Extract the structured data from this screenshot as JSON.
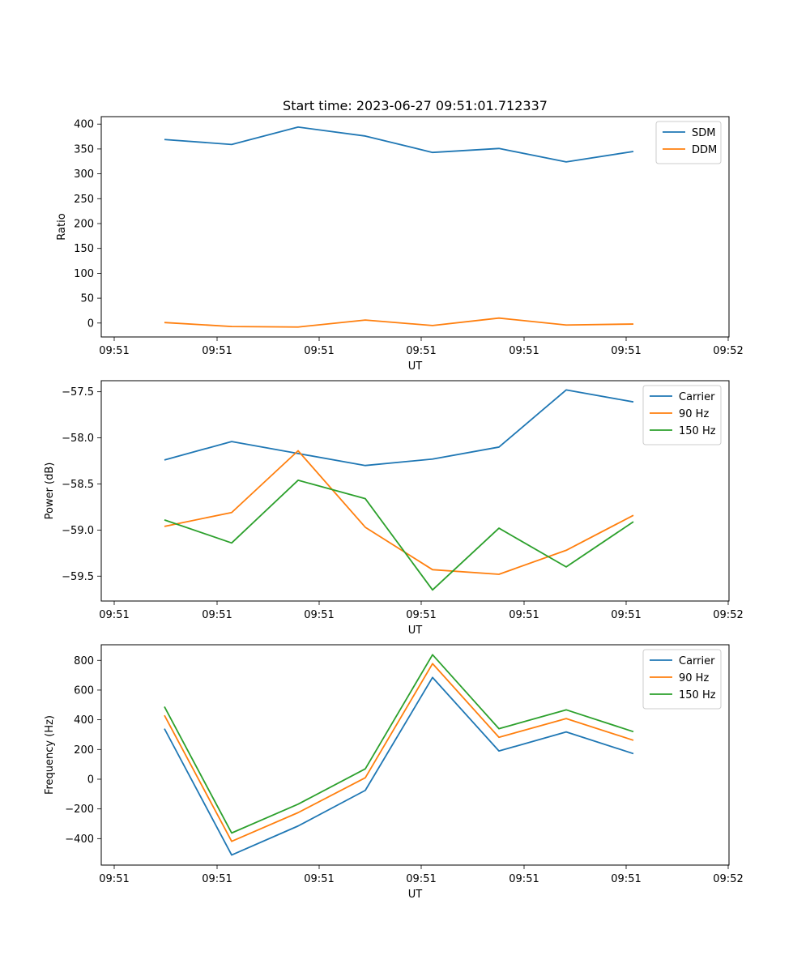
{
  "chart_data": [
    {
      "type": "line",
      "title": "Start time: 2023-06-27 09:51:01.712337",
      "xlabel": "UT",
      "ylabel": "Ratio",
      "x_tick_labels": [
        "09:51",
        "09:51",
        "09:51",
        "09:51",
        "09:51",
        "09:51",
        "09:52"
      ],
      "ylim": [
        -28,
        415
      ],
      "y_ticks": [
        0,
        50,
        100,
        150,
        200,
        250,
        300,
        350,
        400
      ],
      "legend_position": "top-right",
      "series": [
        {
          "name": "SDM",
          "color": "#1f77b4",
          "values": [
            369,
            359,
            394,
            376,
            343,
            351,
            324,
            345
          ]
        },
        {
          "name": "DDM",
          "color": "#ff7f0e",
          "values": [
            1,
            -7,
            -8,
            6,
            -5,
            10,
            -4,
            -2
          ]
        }
      ]
    },
    {
      "type": "line",
      "title": "",
      "xlabel": "UT",
      "ylabel": "Power (dB)",
      "x_tick_labels": [
        "09:51",
        "09:51",
        "09:51",
        "09:51",
        "09:51",
        "09:51",
        "09:52"
      ],
      "ylim": [
        -59.77,
        -57.38
      ],
      "y_ticks": [
        -59.5,
        -59.0,
        -58.5,
        -58.0,
        -57.5
      ],
      "y_tick_labels": [
        "−59.5",
        "−59.0",
        "−58.5",
        "−58.0",
        "−57.5"
      ],
      "legend_position": "top-right",
      "series": [
        {
          "name": "Carrier",
          "color": "#1f77b4",
          "values": [
            -58.24,
            -58.04,
            -58.17,
            -58.3,
            -58.23,
            -58.1,
            -57.48,
            -57.61
          ]
        },
        {
          "name": "90 Hz",
          "color": "#ff7f0e",
          "values": [
            -58.96,
            -58.81,
            -58.14,
            -58.97,
            -59.43,
            -59.48,
            -59.22,
            -58.84
          ]
        },
        {
          "name": "150 Hz",
          "color": "#2ca02c",
          "values": [
            -58.89,
            -59.14,
            -58.46,
            -58.66,
            -59.65,
            -58.98,
            -59.4,
            -58.91
          ]
        }
      ]
    },
    {
      "type": "line",
      "title": "",
      "xlabel": "UT",
      "ylabel": "Frequency (Hz)",
      "x_tick_labels": [
        "09:51",
        "09:51",
        "09:51",
        "09:51",
        "09:51",
        "09:51",
        "09:52"
      ],
      "ylim": [
        -578,
        905
      ],
      "y_ticks": [
        -400,
        -200,
        0,
        200,
        400,
        600,
        800
      ],
      "y_tick_labels": [
        "−400",
        "−200",
        "0",
        "200",
        "400",
        "600",
        "800"
      ],
      "legend_position": "top-right",
      "series": [
        {
          "name": "Carrier",
          "color": "#1f77b4",
          "values": [
            340,
            -510,
            -315,
            -75,
            685,
            190,
            318,
            172
          ]
        },
        {
          "name": "90 Hz",
          "color": "#ff7f0e",
          "values": [
            430,
            -418,
            -225,
            10,
            778,
            282,
            408,
            262
          ]
        },
        {
          "name": "150 Hz",
          "color": "#2ca02c",
          "values": [
            488,
            -362,
            -168,
            70,
            838,
            340,
            467,
            320
          ]
        }
      ]
    }
  ]
}
